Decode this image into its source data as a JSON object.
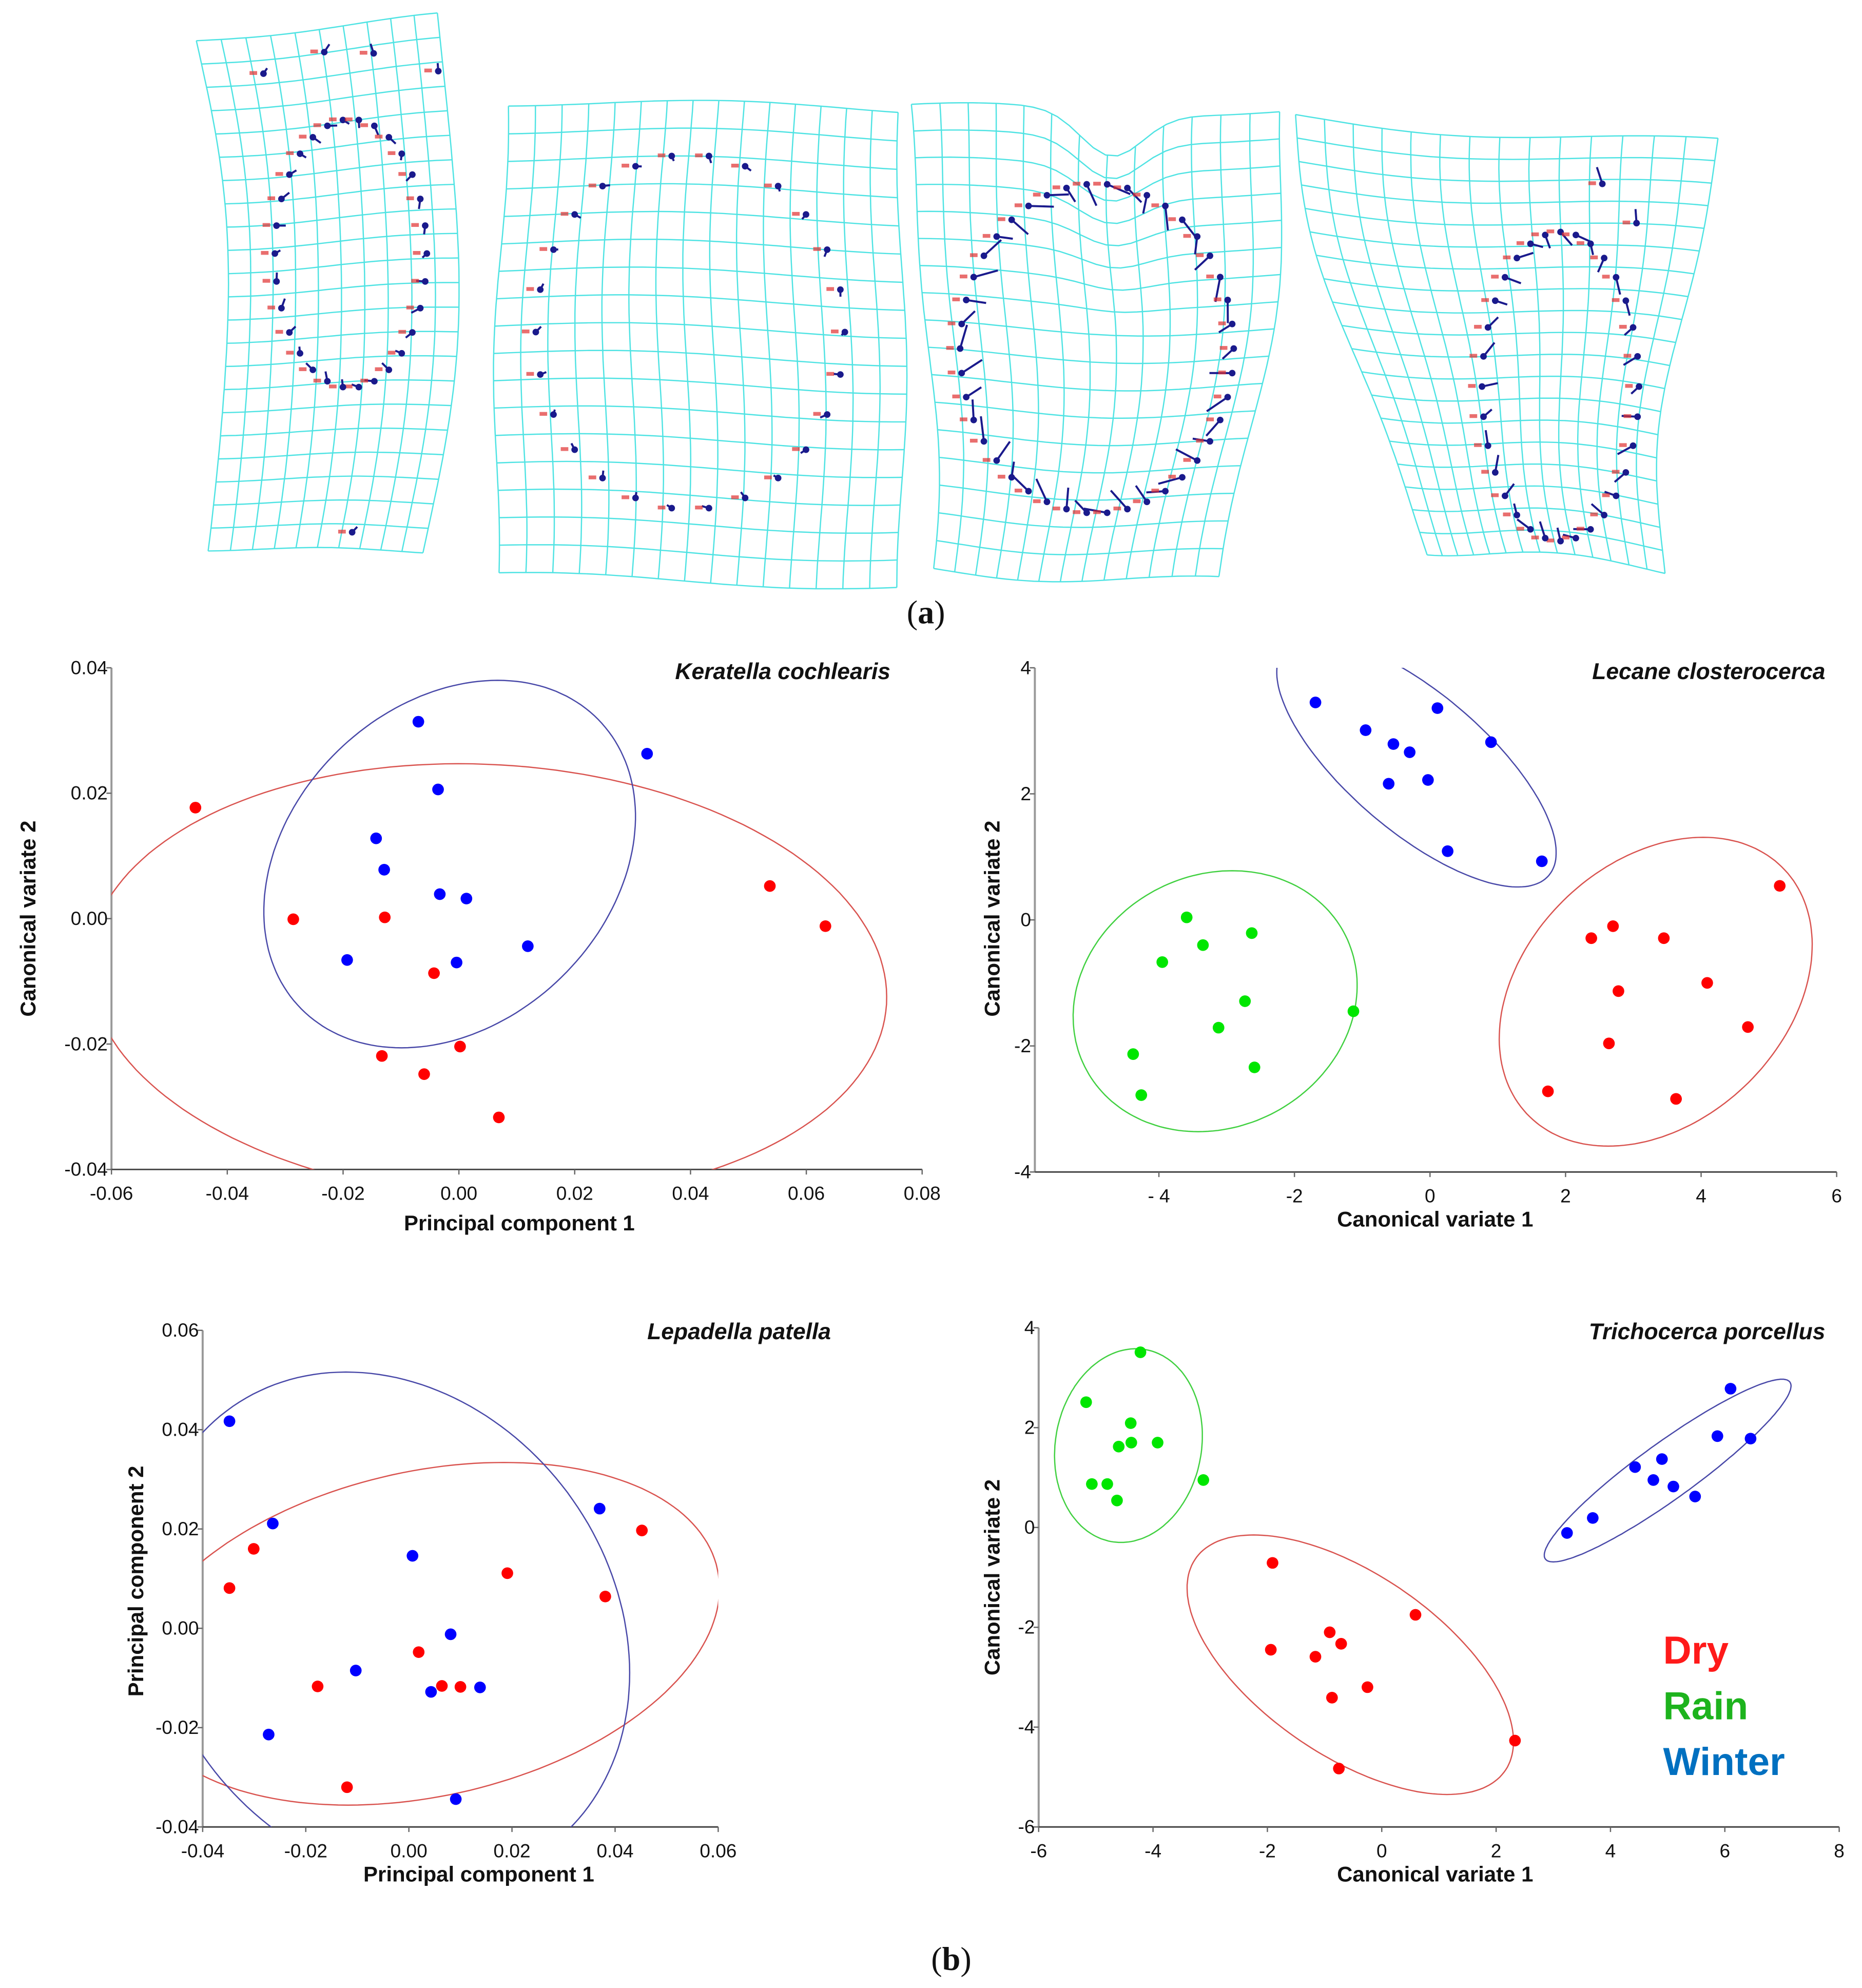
{
  "captions": {
    "a_open": "(",
    "a": "a",
    "a_close": ")",
    "b_open": "(",
    "b": "b",
    "b_close": ")"
  },
  "legend": [
    {
      "label": "Dry",
      "color": "#ff1a1a"
    },
    {
      "label": "Rain",
      "color": "#1db31d"
    },
    {
      "label": "Winter",
      "color": "#0070c0"
    }
  ],
  "deformation_grids": {
    "grid_color": "#4fe3e3",
    "landmark_color": "#1a1a8c",
    "label_color": "#e03030",
    "count": 4
  },
  "chart_data": [
    {
      "type": "scatter",
      "title": "Keratella cochlearis",
      "xlabel": "Principal component 1",
      "ylabel": "Canonical variate 2",
      "xlim": [
        -0.06,
        0.08
      ],
      "ylim": [
        -0.04,
        0.04
      ],
      "x_ticks": [
        {
          "value": -0.06,
          "label": "-0.06"
        },
        {
          "value": -0.04,
          "label": "-0.04"
        },
        {
          "value": -0.02,
          "label": "-0.02"
        },
        {
          "value": 0,
          "label": "0.00"
        },
        {
          "value": 0.02,
          "label": "0.02"
        },
        {
          "value": 0.04,
          "label": "0.04"
        },
        {
          "value": 0.06,
          "label": "0.06"
        },
        {
          "value": 0.08,
          "label": "0.08"
        }
      ],
      "y_ticks": [
        {
          "value": 0.04,
          "label": "0.04"
        },
        {
          "value": 0.02,
          "label": "0.02"
        },
        {
          "value": 0,
          "label": "0.00"
        },
        {
          "value": -0.02,
          "label": "-0.02"
        },
        {
          "value": -0.04,
          "label": "-0.04"
        }
      ],
      "series": [
        {
          "name": "Dry",
          "color": "#ff0000",
          "points": [
            [
              -0.0455,
              0.0177
            ],
            [
              -0.0286,
              -0.0001
            ],
            [
              -0.0128,
              0.0002
            ],
            [
              0.0537,
              0.0052
            ],
            [
              0.0633,
              -0.0012
            ],
            [
              -0.0043,
              -0.0087
            ],
            [
              0.0002,
              -0.0204
            ],
            [
              -0.0133,
              -0.0219
            ],
            [
              -0.006,
              -0.0248
            ],
            [
              0.0069,
              -0.0317
            ]
          ]
        },
        {
          "name": "Winter",
          "color": "#0000ff",
          "points": [
            [
              -0.007,
              0.0314
            ],
            [
              0.0325,
              0.0263
            ],
            [
              -0.0036,
              0.0206
            ],
            [
              -0.0143,
              0.0128
            ],
            [
              -0.0129,
              0.0078
            ],
            [
              -0.0033,
              0.0039
            ],
            [
              0.0013,
              0.0032
            ],
            [
              0.0119,
              -0.0044
            ],
            [
              -0.0193,
              -0.0066
            ],
            [
              -0.0004,
              -0.007
            ]
          ]
        }
      ],
      "ellipses": [
        {
          "series": "Dry",
          "color": "#d9534f",
          "center": [
            0.005,
            -0.01
          ],
          "u": [
            -0.005,
            0.0347
          ],
          "v": [
            0.0687,
            0
          ]
        },
        {
          "series": "Winter",
          "color": "#4848a8",
          "center": [
            -0.0016,
            0.0087
          ],
          "u": [
            0.0083,
            0.0293
          ],
          "v": [
            0.031,
            0
          ]
        }
      ]
    },
    {
      "type": "scatter",
      "title": "Lecane closterocerca",
      "xlabel": "Canonical variate 1",
      "ylabel": "Canonical variate 2",
      "xlim": [
        -5.83,
        6
      ],
      "ylim": [
        -4,
        4
      ],
      "x_ticks": [
        {
          "value": -4,
          "label": "- 4"
        },
        {
          "value": -2,
          "label": "-2"
        },
        {
          "value": 0,
          "label": "0"
        },
        {
          "value": 2,
          "label": "2"
        },
        {
          "value": 4,
          "label": "4"
        },
        {
          "value": 6,
          "label": "6"
        }
      ],
      "y_ticks": [
        {
          "value": 4,
          "label": "4"
        },
        {
          "value": 2,
          "label": "2"
        },
        {
          "value": 0,
          "label": "0"
        },
        {
          "value": -2,
          "label": "-2"
        },
        {
          "value": -4,
          "label": "-4"
        }
      ],
      "series": [
        {
          "name": "Dry",
          "color": "#ff0000",
          "points": [
            [
              5.16,
              0.54
            ],
            [
              2.7,
              -0.1
            ],
            [
              2.38,
              -0.29
            ],
            [
              3.45,
              -0.29
            ],
            [
              4.09,
              -1.0
            ],
            [
              2.78,
              -1.13
            ],
            [
              4.69,
              -1.7
            ],
            [
              2.64,
              -1.96
            ],
            [
              1.74,
              -2.72
            ],
            [
              3.63,
              -2.84
            ]
          ]
        },
        {
          "name": "Rain",
          "color": "#00e600",
          "points": [
            [
              -3.59,
              0.04
            ],
            [
              -2.63,
              -0.21
            ],
            [
              -3.35,
              -0.4
            ],
            [
              -3.95,
              -0.67
            ],
            [
              -2.73,
              -1.29
            ],
            [
              -1.13,
              -1.45
            ],
            [
              -3.12,
              -1.71
            ],
            [
              -4.38,
              -2.13
            ],
            [
              -2.59,
              -2.34
            ],
            [
              -4.26,
              -2.78
            ]
          ]
        },
        {
          "name": "Winter",
          "color": "#0000ff",
          "points": [
            [
              -1.69,
              3.45
            ],
            [
              0.11,
              3.36
            ],
            [
              -0.95,
              3.01
            ],
            [
              -0.54,
              2.79
            ],
            [
              -0.3,
              2.66
            ],
            [
              0.9,
              2.82
            ],
            [
              -0.61,
              2.16
            ],
            [
              -0.03,
              2.22
            ],
            [
              0.26,
              1.09
            ],
            [
              1.65,
              0.93
            ]
          ]
        }
      ],
      "ellipses": [
        {
          "series": "Dry",
          "color": "#d9534f",
          "center": [
            3.33,
            -1.14
          ],
          "u": [
            0.7,
            2.45
          ],
          "v": [
            2.2,
            0
          ]
        },
        {
          "series": "Rain",
          "color": "#40d040",
          "center": [
            -3.17,
            -1.29
          ],
          "u": [
            0.25,
            2.07
          ],
          "v": [
            2.08,
            0
          ]
        },
        {
          "series": "Winter",
          "color": "#4848a8",
          "center": [
            -0.2,
            2.5
          ],
          "u": [
            1.9,
            -1.85
          ],
          "v": [
            0.8,
            0.7
          ]
        }
      ]
    },
    {
      "type": "scatter",
      "title": "Lepadella patella",
      "xlabel": "Principal component 1",
      "ylabel": "Principal component 2",
      "xlim": [
        -0.04,
        0.06
      ],
      "ylim": [
        -0.04,
        0.06
      ],
      "x_ticks": [
        {
          "value": -0.04,
          "label": "-0.04"
        },
        {
          "value": -0.02,
          "label": "-0.02"
        },
        {
          "value": 0,
          "label": "0.00"
        },
        {
          "value": 0.02,
          "label": "0.02"
        },
        {
          "value": 0.04,
          "label": "0.04"
        },
        {
          "value": 0.06,
          "label": "0.06"
        }
      ],
      "y_ticks": [
        {
          "value": 0.06,
          "label": "0.06"
        },
        {
          "value": 0.04,
          "label": "0.04"
        },
        {
          "value": 0.02,
          "label": "0.02"
        },
        {
          "value": 0,
          "label": "0.00"
        },
        {
          "value": -0.02,
          "label": "-0.02"
        },
        {
          "value": -0.04,
          "label": "-0.04"
        }
      ],
      "series": [
        {
          "name": "Dry",
          "color": "#ff0000",
          "points": [
            [
              -0.0301,
              0.016
            ],
            [
              -0.0348,
              0.0081
            ],
            [
              0.0191,
              0.0111
            ],
            [
              0.0452,
              0.0197
            ],
            [
              0.0381,
              0.0064
            ],
            [
              0.0019,
              -0.0048
            ],
            [
              -0.0177,
              -0.0117
            ],
            [
              0.0064,
              -0.0116
            ],
            [
              0.01,
              -0.0118
            ],
            [
              -0.012,
              -0.032
            ]
          ]
        },
        {
          "name": "Winter",
          "color": "#0000ff",
          "points": [
            [
              -0.0348,
              0.0417
            ],
            [
              -0.0264,
              0.0211
            ],
            [
              0.0007,
              0.0146
            ],
            [
              0.037,
              0.0241
            ],
            [
              0.0081,
              -0.0012
            ],
            [
              -0.0103,
              -0.0085
            ],
            [
              0.0043,
              -0.0128
            ],
            [
              0.0138,
              -0.0119
            ],
            [
              -0.0272,
              -0.0214
            ],
            [
              0.0091,
              -0.0344
            ]
          ]
        }
      ],
      "ellipses": [
        {
          "series": "Dry",
          "color": "#d9534f",
          "center": [
            0.0033,
            -0.0011
          ],
          "u": [
            0.0151,
            0.0345
          ],
          "v": [
            0.0549,
            0
          ]
        },
        {
          "series": "Winter",
          "color": "#4848a8",
          "center": [
            -0.004,
            0.0
          ],
          "u": [
            -0.0082,
            0.0516
          ],
          "v": [
            0.0461,
            0
          ]
        }
      ]
    },
    {
      "type": "scatter",
      "title": "Trichocerca porcellus",
      "xlabel": "Canonical variate 1",
      "ylabel": "Canonical variate 2",
      "xlim": [
        -6,
        8
      ],
      "ylim": [
        -6,
        4
      ],
      "x_ticks": [
        {
          "value": -6,
          "label": "-6"
        },
        {
          "value": -4,
          "label": "-4"
        },
        {
          "value": -2,
          "label": "-2"
        },
        {
          "value": 0,
          "label": "0"
        },
        {
          "value": 2,
          "label": "2"
        },
        {
          "value": 4,
          "label": "4"
        },
        {
          "value": 6,
          "label": "6"
        },
        {
          "value": 8,
          "label": "8"
        }
      ],
      "y_ticks": [
        {
          "value": 4,
          "label": "4"
        },
        {
          "value": 2,
          "label": "2"
        },
        {
          "value": 0,
          "label": "0"
        },
        {
          "value": -2,
          "label": "-2"
        },
        {
          "value": -4,
          "label": "-4"
        },
        {
          "value": -6,
          "label": "-6"
        }
      ],
      "series": [
        {
          "name": "Dry",
          "color": "#ff0000",
          "points": [
            [
              -1.91,
              -0.71
            ],
            [
              0.59,
              -1.75
            ],
            [
              -0.91,
              -2.1
            ],
            [
              -0.71,
              -2.33
            ],
            [
              -1.94,
              -2.45
            ],
            [
              -1.16,
              -2.59
            ],
            [
              -0.25,
              -3.2
            ],
            [
              -0.87,
              -3.41
            ],
            [
              2.33,
              -4.27
            ],
            [
              -0.75,
              -4.83
            ]
          ]
        },
        {
          "name": "Rain",
          "color": "#00e600",
          "points": [
            [
              -4.22,
              3.51
            ],
            [
              -5.17,
              2.51
            ],
            [
              -4.39,
              2.09
            ],
            [
              -4.38,
              1.7
            ],
            [
              -4.6,
              1.62
            ],
            [
              -3.92,
              1.7
            ],
            [
              -5.07,
              0.87
            ],
            [
              -4.8,
              0.87
            ],
            [
              -4.63,
              0.54
            ],
            [
              -3.12,
              0.95
            ]
          ]
        },
        {
          "name": "Winter",
          "color": "#0000ff",
          "points": [
            [
              6.1,
              2.78
            ],
            [
              5.87,
              1.83
            ],
            [
              6.45,
              1.78
            ],
            [
              4.9,
              1.37
            ],
            [
              4.43,
              1.21
            ],
            [
              4.75,
              0.95
            ],
            [
              5.1,
              0.82
            ],
            [
              5.48,
              0.62
            ],
            [
              3.69,
              0.19
            ],
            [
              3.24,
              -0.11
            ]
          ]
        }
      ],
      "ellipses": [
        {
          "series": "Dry",
          "color": "#d9534f",
          "center": [
            -0.55,
            -2.75
          ],
          "u": [
            -1.69,
            2.6
          ],
          "v": [
            2.3,
            0
          ]
        },
        {
          "series": "Rain",
          "color": "#40d040",
          "center": [
            -4.43,
            1.64
          ],
          "u": [
            0.13,
            1.94
          ],
          "v": [
            1.286,
            0
          ]
        },
        {
          "series": "Winter",
          "color": "#4848a8",
          "center": [
            5.0,
            1.14
          ],
          "u": [
            2.0,
            1.83
          ],
          "v": [
            0.81,
            0
          ]
        }
      ]
    }
  ]
}
